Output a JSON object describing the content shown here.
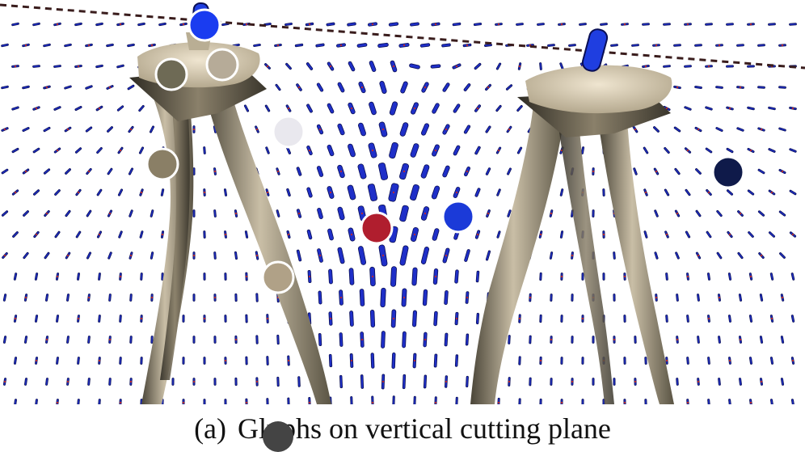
{
  "figure": {
    "caption_label": "(a)",
    "caption_text": "Glyphs on vertical cutting plane"
  },
  "colors": {
    "background": "#ffffff",
    "glyph_fill": "#1f2fc8",
    "glyph_outline": "#0a0f55",
    "seed_red": "#c62828",
    "surface_light": "#d8ccb4",
    "surface_mid": "#a89c84",
    "surface_dark": "#3e3a30"
  },
  "color_swatches": [
    {
      "name": "bright-blue",
      "color": "#1a3cf0"
    },
    {
      "name": "olive-grey",
      "color": "#6e6a55"
    },
    {
      "name": "taupe",
      "color": "#b6ab98"
    },
    {
      "name": "light-grey",
      "color": "#e9e8ee"
    },
    {
      "name": "khaki",
      "color": "#8a7f66"
    },
    {
      "name": "crimson",
      "color": "#b01e2e"
    },
    {
      "name": "royal-blue",
      "color": "#1b3ad8"
    },
    {
      "name": "navy",
      "color": "#0f1a4a"
    },
    {
      "name": "sand",
      "color": "#b0a187"
    },
    {
      "name": "charcoal",
      "color": "#444444"
    }
  ]
}
